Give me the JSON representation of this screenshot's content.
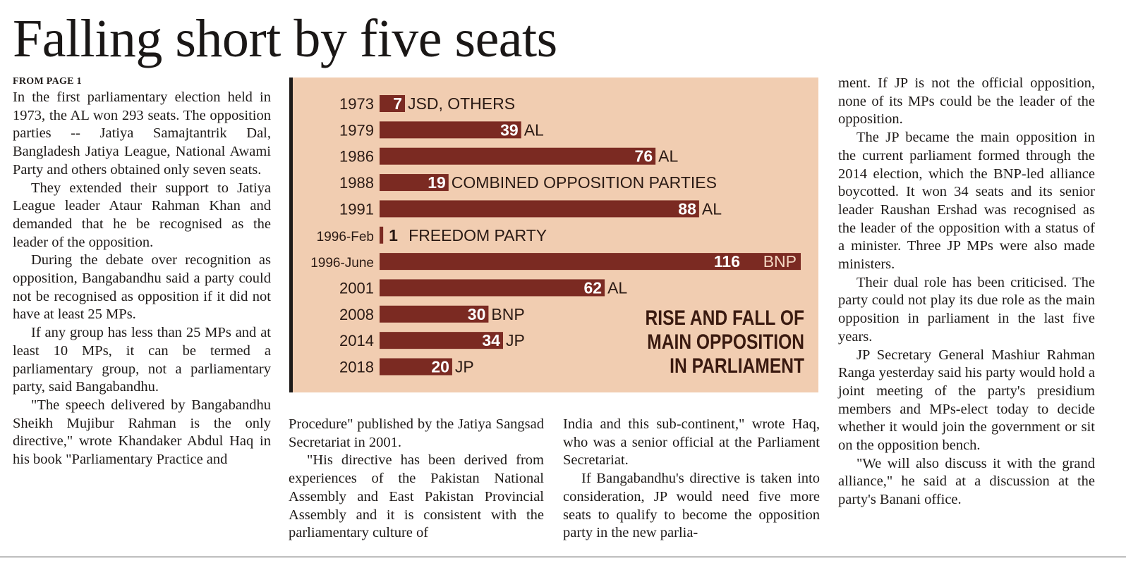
{
  "headline": "Falling short by five seats",
  "from_page": "FROM PAGE 1",
  "columns": {
    "col1": [
      "In the first parliamentary election held in 1973, the AL won 293 seats. The opposition parties -- Jatiya Samajtantrik Dal, Bangladesh Jatiya League, National Awami Party and others obtained only seven seats.",
      "They extended their support to Jatiya League leader Ataur Rahman Khan and demanded that he be recognised as the leader of the opposition.",
      "During the debate over recognition as opposition, Bangabandhu said a party could not be recognised as opposition if it did not have at least 25 MPs.",
      "If any group has less than 25 MPs and at least 10 MPs, it can be termed a parliamentary group, not a parliamentary party, said Bangabandhu.",
      "\"The speech delivered by Bangabandhu Sheikh Mujibur Rahman is the only directive,\" wrote Khandaker Abdul Haq in his book \"Parliamentary Practice and"
    ],
    "col2": [
      "Procedure\" published by the Jatiya Sangsad Secretariat in 2001.",
      "\"His directive has been derived from experiences of the Pakistan National Assembly and East Pakistan Provincial Assembly and it is consistent with the parliamentary culture of"
    ],
    "col3": [
      "India and this sub-continent,\" wrote Haq, who was a senior official at the Parliament Secretariat.",
      "If Bangabandhu's directive is taken into consideration, JP would need five more seats to qualify to become the opposition party in the new parlia-"
    ],
    "col4": [
      "ment. If JP is not the official opposition, none of its MPs could be the leader of the opposition.",
      "The JP became the main opposition in the current parliament formed through the 2014 election, which the BNP-led alliance boycotted. It won 34 seats and its senior leader Raushan Ershad was recognised as the leader of the opposition with a status of a minister. Three JP MPs were also made ministers.",
      "Their dual role has been criticised. The party could not play its due role as the main opposition in parliament in the last five years.",
      "JP Secretary General Mashiur Rahman Ranga yesterday said his party would hold a joint meeting of the party's presidium members and MPs-elect today to decide whether it would join the government or sit on the opposition bench.",
      "\"We will also discuss it with the grand alliance,\" he said at a discussion at the party's Banani office."
    ]
  },
  "chart_data": {
    "type": "bar",
    "orientation": "horizontal",
    "title_lines": [
      "RISE AND FALL OF",
      "MAIN OPPOSITION",
      "IN PARLIAMENT"
    ],
    "categories": [
      "1973",
      "1979",
      "1986",
      "1988",
      "1991",
      "1996-Feb",
      "1996-June",
      "2001",
      "2008",
      "2014",
      "2018"
    ],
    "values": [
      7,
      39,
      76,
      19,
      88,
      1,
      116,
      62,
      30,
      34,
      20
    ],
    "party_labels": [
      "JSD, OTHERS",
      "AL",
      "AL",
      "COMBINED OPPOSITION PARTIES",
      "AL",
      "FREEDOM PARTY",
      "BNP",
      "AL",
      "BNP",
      "JP",
      "JP"
    ],
    "xlim": [
      0,
      116
    ],
    "grid": false,
    "legend": "none",
    "colors": {
      "bar": "#7b2a22",
      "background": "#f1cdb1",
      "text": "#2a1a14"
    }
  }
}
